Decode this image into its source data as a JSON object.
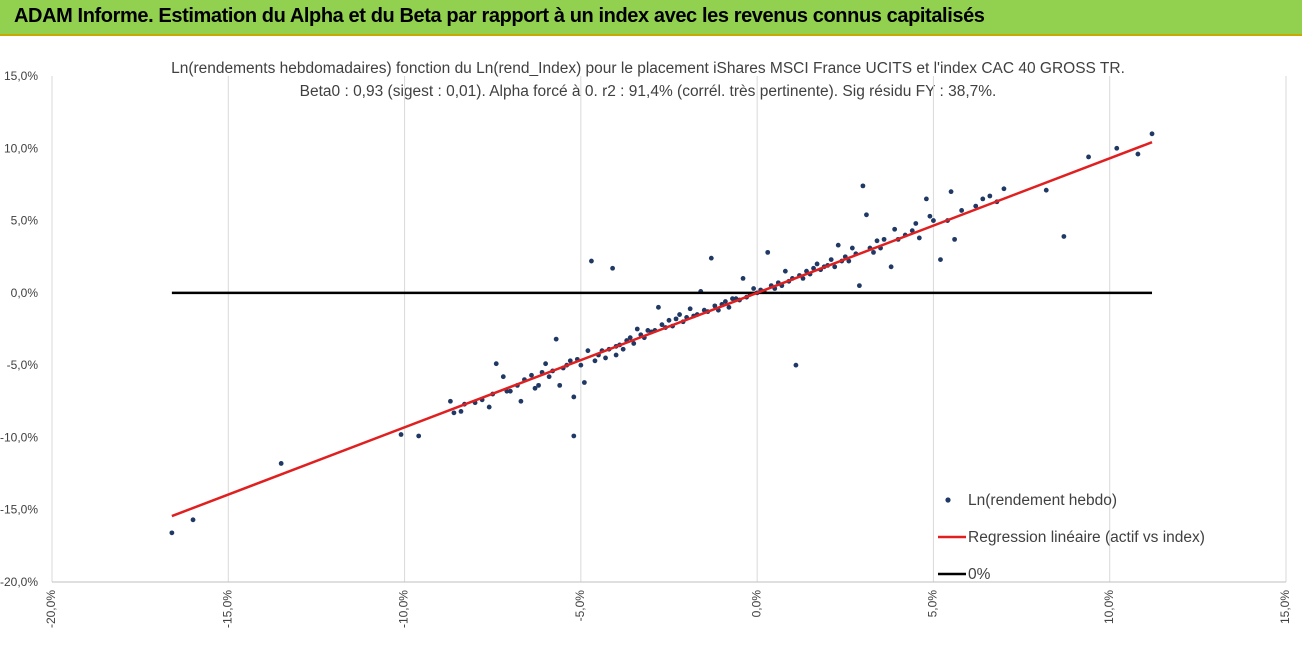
{
  "header": {
    "title": "ADAM Informe. Estimation du Alpha et du Beta par rapport à un index avec les revenus connus capitalisés"
  },
  "colors": {
    "banner": "#92d050",
    "points": "#203864",
    "regression": "#e02020",
    "zero_line": "#000000",
    "grid": "#d9d9d9"
  },
  "chart_data": {
    "type": "scatter",
    "title": "Ln(rendements hebdomadaires) fonction du Ln(rend_Index) pour le placement iShares MSCI France UCITS et l'index CAC 40 GROSS TR.",
    "subtitle": "Beta0 : 0,93  (sigest : 0,01).  Alpha forcé à 0. r2 : 91,4% (corrél. très pertinente). Sig résidu FY : 38,7%.",
    "xlim": [
      -0.2,
      0.15
    ],
    "ylim": [
      -0.2,
      0.15
    ],
    "x_ticks": [
      "-20,0%",
      "-15,0%",
      "-10,0%",
      "-5,0%",
      "0,0%",
      "5,0%",
      "10,0%",
      "15,0%"
    ],
    "y_ticks": [
      "15,0%",
      "10,0%",
      "5,0%",
      "0,0%",
      "-5,0%",
      "-10,0%",
      "-15,0%",
      "-20,0%"
    ],
    "grid": "vertical",
    "legend_position": "bottom-right",
    "series": [
      {
        "name": "Ln(rendement hebdo)",
        "kind": "scatter",
        "points": [
          [
            -0.166,
            -0.166
          ],
          [
            -0.16,
            -0.157
          ],
          [
            -0.135,
            -0.118
          ],
          [
            -0.101,
            -0.098
          ],
          [
            -0.096,
            -0.099
          ],
          [
            -0.087,
            -0.075
          ],
          [
            -0.086,
            -0.083
          ],
          [
            -0.084,
            -0.082
          ],
          [
            -0.083,
            -0.077
          ],
          [
            -0.08,
            -0.076
          ],
          [
            -0.078,
            -0.074
          ],
          [
            -0.076,
            -0.079
          ],
          [
            -0.075,
            -0.07
          ],
          [
            -0.074,
            -0.049
          ],
          [
            -0.072,
            -0.058
          ],
          [
            -0.071,
            -0.068
          ],
          [
            -0.07,
            -0.068
          ],
          [
            -0.068,
            -0.064
          ],
          [
            -0.067,
            -0.075
          ],
          [
            -0.066,
            -0.06
          ],
          [
            -0.064,
            -0.057
          ],
          [
            -0.063,
            -0.066
          ],
          [
            -0.062,
            -0.064
          ],
          [
            -0.061,
            -0.055
          ],
          [
            -0.06,
            -0.049
          ],
          [
            -0.059,
            -0.058
          ],
          [
            -0.058,
            -0.054
          ],
          [
            -0.057,
            -0.032
          ],
          [
            -0.056,
            -0.064
          ],
          [
            -0.055,
            -0.052
          ],
          [
            -0.054,
            -0.05
          ],
          [
            -0.053,
            -0.047
          ],
          [
            -0.052,
            -0.099
          ],
          [
            -0.052,
            -0.072
          ],
          [
            -0.051,
            -0.046
          ],
          [
            -0.05,
            -0.05
          ],
          [
            -0.049,
            -0.062
          ],
          [
            -0.048,
            -0.04
          ],
          [
            -0.047,
            0.022
          ],
          [
            -0.046,
            -0.047
          ],
          [
            -0.045,
            -0.043
          ],
          [
            -0.044,
            -0.04
          ],
          [
            -0.043,
            -0.045
          ],
          [
            -0.042,
            -0.039
          ],
          [
            -0.041,
            0.017
          ],
          [
            -0.04,
            -0.037
          ],
          [
            -0.04,
            -0.043
          ],
          [
            -0.039,
            -0.036
          ],
          [
            -0.038,
            -0.039
          ],
          [
            -0.037,
            -0.033
          ],
          [
            -0.036,
            -0.031
          ],
          [
            -0.035,
            -0.035
          ],
          [
            -0.034,
            -0.025
          ],
          [
            -0.033,
            -0.029
          ],
          [
            -0.032,
            -0.031
          ],
          [
            -0.031,
            -0.026
          ],
          [
            -0.03,
            -0.027
          ],
          [
            -0.029,
            -0.026
          ],
          [
            -0.028,
            -0.01
          ],
          [
            -0.027,
            -0.022
          ],
          [
            -0.026,
            -0.024
          ],
          [
            -0.025,
            -0.019
          ],
          [
            -0.024,
            -0.023
          ],
          [
            -0.023,
            -0.018
          ],
          [
            -0.022,
            -0.015
          ],
          [
            -0.021,
            -0.02
          ],
          [
            -0.02,
            -0.017
          ],
          [
            -0.019,
            -0.011
          ],
          [
            -0.018,
            -0.016
          ],
          [
            -0.017,
            -0.015
          ],
          [
            -0.016,
            0.001
          ],
          [
            -0.015,
            -0.012
          ],
          [
            -0.014,
            -0.013
          ],
          [
            -0.013,
            0.024
          ],
          [
            -0.012,
            -0.009
          ],
          [
            -0.011,
            -0.012
          ],
          [
            -0.01,
            -0.008
          ],
          [
            -0.009,
            -0.006
          ],
          [
            -0.008,
            -0.01
          ],
          [
            -0.007,
            -0.004
          ],
          [
            -0.006,
            -0.004
          ],
          [
            -0.005,
            -0.005
          ],
          [
            -0.004,
            0.01
          ],
          [
            -0.003,
            -0.003
          ],
          [
            -0.002,
            -0.001
          ],
          [
            -0.001,
            0.003
          ],
          [
            0.0,
            0.0
          ],
          [
            0.001,
            0.002
          ],
          [
            0.002,
            0.001
          ],
          [
            0.003,
            0.028
          ],
          [
            0.004,
            0.005
          ],
          [
            0.005,
            0.003
          ],
          [
            0.006,
            0.007
          ],
          [
            0.007,
            0.005
          ],
          [
            0.008,
            0.015
          ],
          [
            0.009,
            0.008
          ],
          [
            0.01,
            0.01
          ],
          [
            0.011,
            -0.05
          ],
          [
            0.012,
            0.012
          ],
          [
            0.013,
            0.01
          ],
          [
            0.014,
            0.015
          ],
          [
            0.015,
            0.013
          ],
          [
            0.016,
            0.017
          ],
          [
            0.017,
            0.02
          ],
          [
            0.018,
            0.016
          ],
          [
            0.019,
            0.018
          ],
          [
            0.02,
            0.019
          ],
          [
            0.021,
            0.023
          ],
          [
            0.022,
            0.018
          ],
          [
            0.023,
            0.033
          ],
          [
            0.024,
            0.022
          ],
          [
            0.025,
            0.025
          ],
          [
            0.026,
            0.022
          ],
          [
            0.027,
            0.031
          ],
          [
            0.028,
            0.027
          ],
          [
            0.029,
            0.005
          ],
          [
            0.03,
            0.074
          ],
          [
            0.031,
            0.054
          ],
          [
            0.032,
            0.031
          ],
          [
            0.033,
            0.028
          ],
          [
            0.034,
            0.036
          ],
          [
            0.035,
            0.031
          ],
          [
            0.036,
            0.037
          ],
          [
            0.038,
            0.018
          ],
          [
            0.039,
            0.044
          ],
          [
            0.04,
            0.037
          ],
          [
            0.042,
            0.04
          ],
          [
            0.044,
            0.043
          ],
          [
            0.045,
            0.048
          ],
          [
            0.046,
            0.038
          ],
          [
            0.048,
            0.065
          ],
          [
            0.049,
            0.053
          ],
          [
            0.05,
            0.05
          ],
          [
            0.052,
            0.023
          ],
          [
            0.054,
            0.05
          ],
          [
            0.055,
            0.07
          ],
          [
            0.056,
            0.037
          ],
          [
            0.058,
            0.057
          ],
          [
            0.062,
            0.06
          ],
          [
            0.064,
            0.065
          ],
          [
            0.066,
            0.067
          ],
          [
            0.068,
            0.063
          ],
          [
            0.07,
            0.072
          ],
          [
            0.082,
            0.071
          ],
          [
            0.087,
            0.039
          ],
          [
            0.094,
            0.094
          ],
          [
            0.102,
            0.1
          ],
          [
            0.108,
            0.096
          ],
          [
            0.112,
            0.11
          ]
        ]
      },
      {
        "name": "Regression linéaire (actif vs index)",
        "kind": "line",
        "x": [
          -0.166,
          0.112
        ],
        "y": [
          -0.1544,
          0.1042
        ]
      },
      {
        "name": "0%",
        "kind": "line",
        "x": [
          -0.166,
          0.112
        ],
        "y": [
          0.0,
          0.0
        ]
      }
    ]
  }
}
